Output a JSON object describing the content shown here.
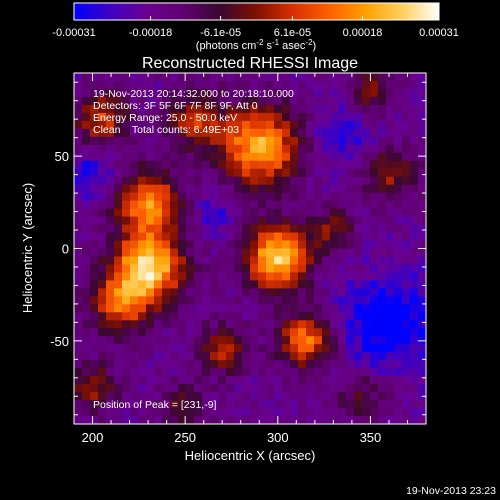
{
  "chart_data": {
    "type": "heatmap",
    "title": "Reconstructed RHESSI Image",
    "xlabel": "Heliocentric X (arcsec)",
    "ylabel": "Heliocentric Y (arcsec)",
    "xlim": [
      190,
      380
    ],
    "ylim": [
      -95,
      95
    ],
    "x_ticks": [
      200,
      250,
      300,
      350
    ],
    "y_ticks": [
      -50,
      0,
      50
    ],
    "colorbar": {
      "range": [
        -0.00031,
        0.00031
      ],
      "tick_values": [
        -0.00031,
        -0.00018,
        -6.1e-05,
        6.1e-05,
        0.00018,
        0.00031
      ],
      "tick_labels": [
        "-0.00031",
        "-0.00018",
        "-6.1e-05",
        "6.1e-05",
        "0.00018",
        "0.00031"
      ],
      "unit_prefix": "(photons cm",
      "unit_exp1": "-2",
      "unit_mid": " s",
      "unit_exp2": "-1",
      "unit_mid2": " asec",
      "unit_exp3": "-2",
      "unit_suffix": ")",
      "colors": [
        "#0000ff",
        "#4000c0",
        "#6a0090",
        "#600070",
        "#3a0830",
        "#801000",
        "#d83000",
        "#ff6000",
        "#ffa000",
        "#ffd060",
        "#ffffff"
      ]
    },
    "annotations": [
      "19-Nov-2013 20:14:32.000 to 20:18:10.000",
      "Detectors: 3F 5F 6F 7F 8F 9F, Att 0",
      "Energy Range: 25.0 - 50.0 keV",
      "Clean    Total counts: 6.49E+03"
    ],
    "peak_label": "Position of Peak = [231,-9]",
    "peak": [
      231,
      -9
    ],
    "sources": [
      {
        "x": 230,
        "y": -10,
        "amp": 1.0,
        "sigma": 13
      },
      {
        "x": 230,
        "y": 25,
        "amp": 0.75,
        "sigma": 12
      },
      {
        "x": 215,
        "y": -30,
        "amp": 0.6,
        "sigma": 11
      },
      {
        "x": 300,
        "y": -5,
        "amp": 0.95,
        "sigma": 12
      },
      {
        "x": 290,
        "y": 55,
        "amp": 0.85,
        "sigma": 15
      },
      {
        "x": 315,
        "y": -50,
        "amp": 0.7,
        "sigma": 10
      },
      {
        "x": 270,
        "y": -55,
        "amp": 0.45,
        "sigma": 9
      },
      {
        "x": 205,
        "y": 70,
        "amp": 0.55,
        "sigma": 10
      },
      {
        "x": 255,
        "y": 70,
        "amp": 0.5,
        "sigma": 10
      },
      {
        "x": 360,
        "y": 40,
        "amp": 0.4,
        "sigma": 10
      },
      {
        "x": 350,
        "y": 85,
        "amp": 0.35,
        "sigma": 8
      },
      {
        "x": 330,
        "y": 10,
        "amp": 0.35,
        "sigma": 8
      },
      {
        "x": 200,
        "y": -75,
        "amp": 0.4,
        "sigma": 9
      },
      {
        "x": 345,
        "y": -80,
        "amp": 0.3,
        "sigma": 9
      },
      {
        "x": 250,
        "y": -85,
        "amp": 0.3,
        "sigma": 8
      }
    ],
    "negative_regions": [
      {
        "x": 360,
        "y": -40,
        "amp": 0.8,
        "sigma": 18
      },
      {
        "x": 200,
        "y": 40,
        "amp": 0.5,
        "sigma": 10
      },
      {
        "x": 335,
        "y": 60,
        "amp": 0.45,
        "sigma": 12
      },
      {
        "x": 265,
        "y": 20,
        "amp": 0.4,
        "sigma": 9
      }
    ]
  },
  "footer": {
    "timestamp": "19-Nov-2013 23:23"
  }
}
